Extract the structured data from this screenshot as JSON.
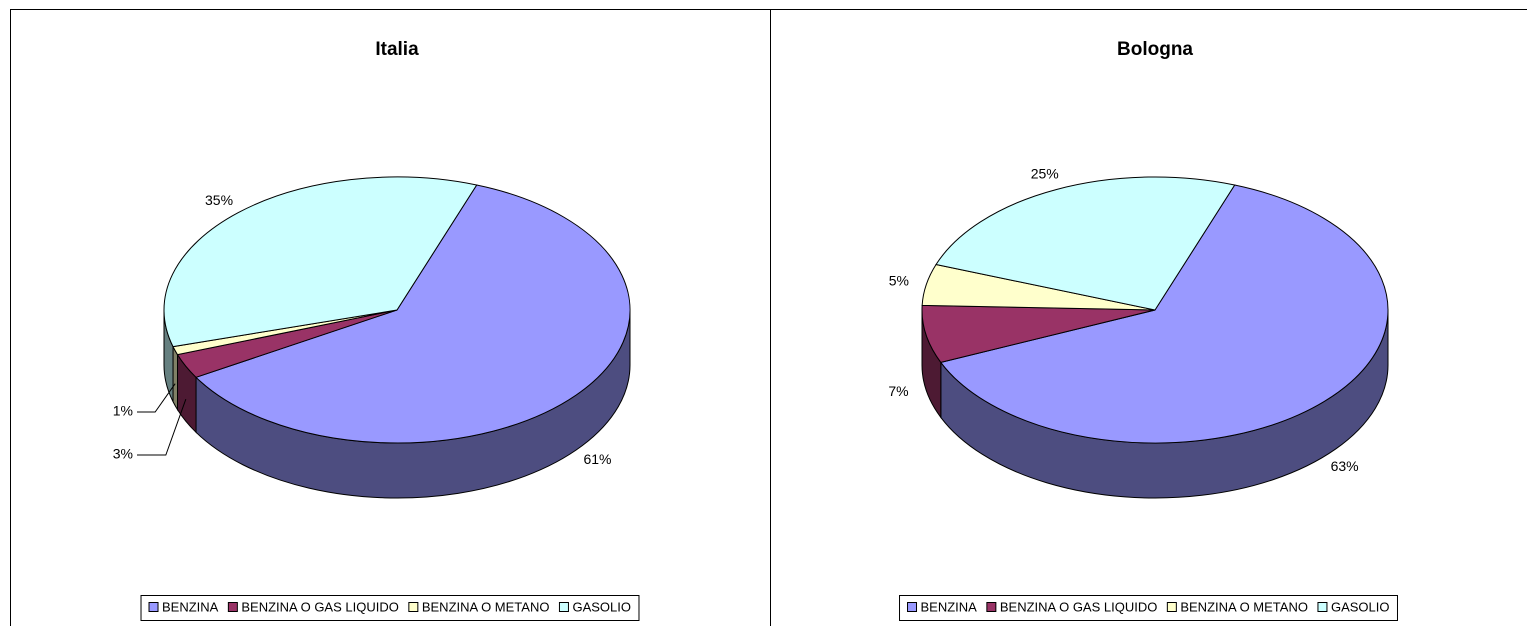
{
  "chart_data": [
    {
      "type": "pie",
      "title": "Italia",
      "categories": [
        "BENZINA",
        "BENZINA O GAS LIQUIDO",
        "BENZINA O METANO",
        "GASOLIO"
      ],
      "values": [
        61,
        3,
        1,
        35
      ],
      "value_labels": [
        "61%",
        "3%",
        "1%",
        "35%"
      ],
      "colors": [
        "#9999ff",
        "#993366",
        "#ffffcc",
        "#ccffff"
      ],
      "legend": "bottom"
    },
    {
      "type": "pie",
      "title": "Bologna",
      "categories": [
        "BENZINA",
        "BENZINA O GAS LIQUIDO",
        "BENZINA O METANO",
        "GASOLIO"
      ],
      "values": [
        63,
        7,
        5,
        25
      ],
      "value_labels": [
        "63%",
        "7%",
        "5%",
        "25%"
      ],
      "colors": [
        "#9999ff",
        "#993366",
        "#ffffcc",
        "#ccffff"
      ],
      "legend": "bottom"
    }
  ]
}
